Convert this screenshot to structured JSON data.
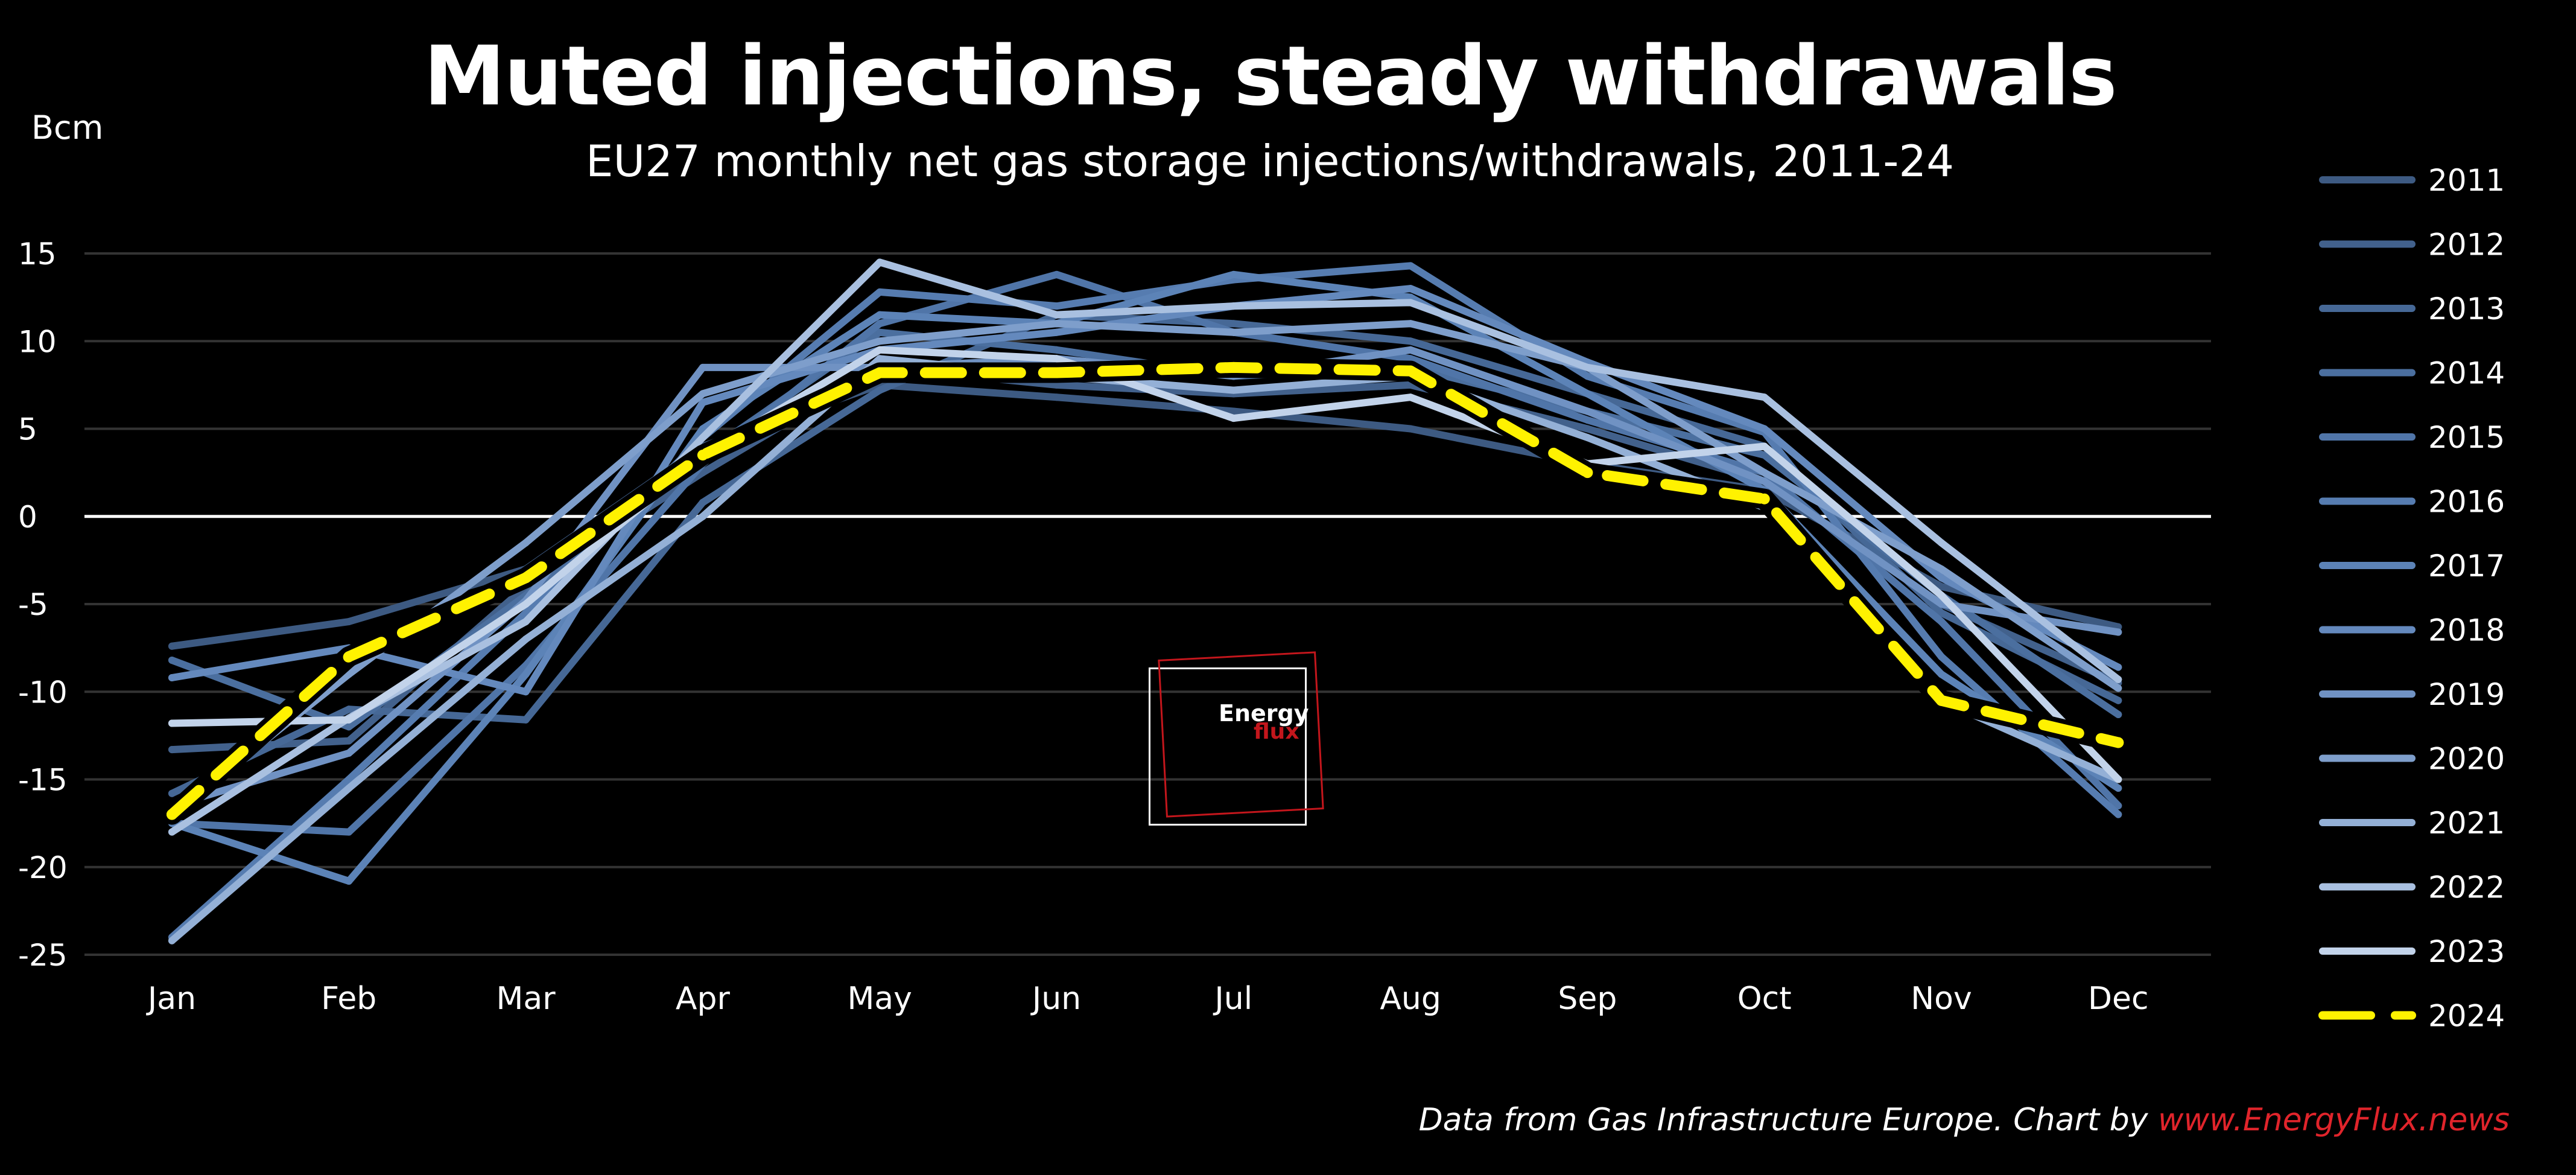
{
  "title": "Muted injections, steady withdrawals",
  "subtitle": "EU27 monthly net gas storage injections/withdrawals, 2011-24",
  "unit_label": "Bcm",
  "source_text": "Data from Gas Infrastructure Europe. Chart by ",
  "source_brand": "www.EnergyFlux.news",
  "logo": {
    "word1": "Energy",
    "word2": "flux"
  },
  "colors": {
    "highlight": "#fff200",
    "brand_red": "#e0242b",
    "grid": "#333333",
    "zero_line": "#ffffff"
  },
  "chart_data": {
    "type": "line",
    "title": "Muted injections, steady withdrawals",
    "subtitle": "EU27 monthly net gas storage injections/withdrawals, 2011-24",
    "ylabel": "Bcm",
    "ylim": [
      -25,
      15
    ],
    "yticks": [
      15,
      10,
      5,
      0,
      -5,
      -10,
      -15,
      -20,
      -25
    ],
    "grid": true,
    "legend_position": "right",
    "categories": [
      "Jan",
      "Feb",
      "Mar",
      "Apr",
      "May",
      "Jun",
      "Jul",
      "Aug",
      "Sep",
      "Oct",
      "Nov",
      "Dec"
    ],
    "series": [
      {
        "name": "2011",
        "color": "#3d5a82",
        "values": [
          -7.4,
          -6.0,
          -3.0,
          4.0,
          7.5,
          6.8,
          6.0,
          5.0,
          3.0,
          1.5,
          -4.0,
          -6.3
        ]
      },
      {
        "name": "2012",
        "color": "#42618c",
        "values": [
          -13.3,
          -12.8,
          -4.0,
          2.5,
          8.5,
          7.5,
          7.0,
          7.5,
          5.0,
          2.0,
          -5.0,
          -9.5
        ]
      },
      {
        "name": "2013",
        "color": "#466896",
        "values": [
          -15.8,
          -11.0,
          -11.6,
          0.8,
          7.2,
          11.5,
          11.0,
          10.0,
          7.0,
          4.0,
          -5.5,
          -10.5
        ]
      },
      {
        "name": "2014",
        "color": "#4b6f9f",
        "values": [
          -8.2,
          -12.0,
          -4.5,
          3.5,
          10.5,
          9.5,
          8.0,
          8.5,
          6.0,
          3.5,
          -4.5,
          -11.3
        ]
      },
      {
        "name": "2015",
        "color": "#5075a8",
        "values": [
          -17.5,
          -18.0,
          -8.5,
          3.0,
          11.0,
          13.8,
          10.5,
          9.0,
          5.5,
          2.5,
          -6.0,
          -16.5
        ]
      },
      {
        "name": "2016",
        "color": "#567cb0",
        "values": [
          -24.0,
          -15.0,
          -5.5,
          4.5,
          12.8,
          12.0,
          13.5,
          14.3,
          8.0,
          4.8,
          -8.0,
          -17.0
        ]
      },
      {
        "name": "2017",
        "color": "#5c83b7",
        "values": [
          -17.5,
          -20.8,
          -9.0,
          5.0,
          11.5,
          11.0,
          13.8,
          12.5,
          7.0,
          1.5,
          -9.0,
          -15.5
        ]
      },
      {
        "name": "2018",
        "color": "#6489bd",
        "values": [
          -9.2,
          -7.5,
          -10.0,
          6.5,
          9.5,
          10.5,
          12.0,
          13.0,
          8.8,
          5.0,
          -3.5,
          -8.6
        ]
      },
      {
        "name": "2019",
        "color": "#7092c3",
        "values": [
          -16.5,
          -13.5,
          -4.8,
          8.5,
          8.5,
          9.0,
          8.0,
          9.5,
          6.0,
          2.0,
          -5.0,
          -6.6
        ]
      },
      {
        "name": "2020",
        "color": "#7e9ecb",
        "values": [
          -17.0,
          -9.0,
          -1.5,
          7.0,
          10.0,
          11.0,
          10.5,
          11.0,
          8.5,
          2.5,
          -3.0,
          -9.8
        ]
      },
      {
        "name": "2021",
        "color": "#94b0d6",
        "values": [
          -24.2,
          -15.5,
          -7.0,
          0.0,
          9.0,
          8.0,
          7.2,
          8.0,
          4.5,
          0.5,
          -10.5,
          -15.0
        ]
      },
      {
        "name": "2022",
        "color": "#a9c0e0",
        "values": [
          -18.0,
          -11.5,
          -6.0,
          4.5,
          14.5,
          11.5,
          12.0,
          12.2,
          8.5,
          6.8,
          -1.5,
          -9.3
        ]
      },
      {
        "name": "2023",
        "color": "#c2d3ea",
        "values": [
          -11.8,
          -11.6,
          -5.0,
          3.5,
          9.5,
          9.0,
          5.6,
          6.8,
          3.0,
          4.0,
          -4.5,
          -15.0
        ]
      },
      {
        "name": "2024",
        "color": "#fff200",
        "dashed": true,
        "values": [
          -17.0,
          -8.0,
          -3.5,
          3.5,
          8.2,
          8.2,
          8.5,
          8.3,
          2.5,
          1.0,
          -10.5,
          -12.9
        ]
      }
    ]
  }
}
